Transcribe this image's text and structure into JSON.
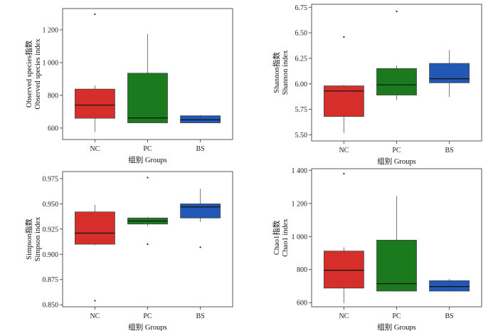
{
  "chart_data": [
    {
      "type": "boxplot",
      "categories": [
        "NC",
        "PC",
        "BS"
      ],
      "xlabel": "组别 Groups",
      "ylabel": [
        "Observed species指数",
        "Observed species index"
      ],
      "yticks": [
        600,
        800,
        1000,
        1200
      ],
      "ytick_labels": [
        "600",
        "800",
        "1 000",
        "1 200"
      ],
      "ylim": [
        530,
        1330
      ],
      "series": [
        {
          "category": "NC",
          "color": "#d62f2b",
          "min": 575,
          "q1": 660,
          "median": 740,
          "q3": 838,
          "max": 860,
          "outliers": [
            1295
          ]
        },
        {
          "category": "PC",
          "color": "#1b7a1e",
          "min": 630,
          "q1": 632,
          "median": 662,
          "q3": 935,
          "max": 1175,
          "outliers": []
        },
        {
          "category": "BS",
          "color": "#2157b5",
          "min": 630,
          "q1": 632,
          "median": 650,
          "q3": 675,
          "max": 680,
          "outliers": []
        }
      ]
    },
    {
      "type": "boxplot",
      "categories": [
        "NC",
        "PC",
        "BS"
      ],
      "xlabel": "组别 Groups",
      "ylabel": [
        "Shannon指数",
        "Shannon index"
      ],
      "yticks": [
        5.5,
        5.75,
        6.0,
        6.25,
        6.5,
        6.75
      ],
      "ytick_labels": [
        "5.50",
        "5.75",
        "6.00",
        "6.25",
        "6.50",
        "6.75"
      ],
      "ylim": [
        5.44,
        6.78
      ],
      "series": [
        {
          "category": "NC",
          "color": "#d62f2b",
          "min": 5.52,
          "q1": 5.68,
          "median": 5.93,
          "q3": 5.98,
          "max": 5.99,
          "outliers": [
            6.46
          ]
        },
        {
          "category": "PC",
          "color": "#1b7a1e",
          "min": 5.84,
          "q1": 5.89,
          "median": 5.99,
          "q3": 6.15,
          "max": 6.18,
          "outliers": [
            6.71
          ]
        },
        {
          "category": "BS",
          "color": "#2157b5",
          "min": 5.87,
          "q1": 6.01,
          "median": 6.05,
          "q3": 6.2,
          "max": 6.33,
          "outliers": []
        }
      ]
    },
    {
      "type": "boxplot",
      "categories": [
        "NC",
        "PC",
        "BS"
      ],
      "xlabel": "组别 Groups",
      "ylabel": [
        "Simpson指数",
        "Simpson index"
      ],
      "yticks": [
        0.85,
        0.875,
        0.9,
        0.925,
        0.95,
        0.975
      ],
      "ytick_labels": [
        "0.850",
        "0.875",
        "0.900",
        "0.925",
        "0.950",
        "0.975"
      ],
      "ylim": [
        0.848,
        0.982
      ],
      "series": [
        {
          "category": "NC",
          "color": "#d62f2b",
          "min": 0.909,
          "q1": 0.91,
          "median": 0.921,
          "q3": 0.942,
          "max": 0.949,
          "outliers": [
            0.854
          ]
        },
        {
          "category": "PC",
          "color": "#1b7a1e",
          "min": 0.928,
          "q1": 0.93,
          "median": 0.933,
          "q3": 0.936,
          "max": 0.937,
          "outliers": [
            0.91,
            0.976
          ]
        },
        {
          "category": "BS",
          "color": "#2157b5",
          "min": 0.932,
          "q1": 0.936,
          "median": 0.947,
          "q3": 0.95,
          "max": 0.965,
          "outliers": [
            0.907
          ]
        }
      ]
    },
    {
      "type": "boxplot",
      "categories": [
        "NC",
        "PC",
        "BS"
      ],
      "xlabel": "组别 Groups",
      "ylabel": [
        "Chao1指数",
        "Chao1 index"
      ],
      "yticks": [
        600,
        800,
        1000,
        1200,
        1400
      ],
      "ytick_labels": [
        "600",
        "800",
        "1 000",
        "1 200",
        "1 400"
      ],
      "ylim": [
        575,
        1410
      ],
      "series": [
        {
          "category": "NC",
          "color": "#d62f2b",
          "min": 597,
          "q1": 688,
          "median": 796,
          "q3": 912,
          "max": 935,
          "outliers": [
            1380
          ]
        },
        {
          "category": "PC",
          "color": "#1b7a1e",
          "min": 668,
          "q1": 670,
          "median": 715,
          "q3": 978,
          "max": 1245,
          "outliers": []
        },
        {
          "category": "BS",
          "color": "#2157b5",
          "min": 668,
          "q1": 670,
          "median": 697,
          "q3": 733,
          "max": 745,
          "outliers": []
        }
      ]
    }
  ]
}
